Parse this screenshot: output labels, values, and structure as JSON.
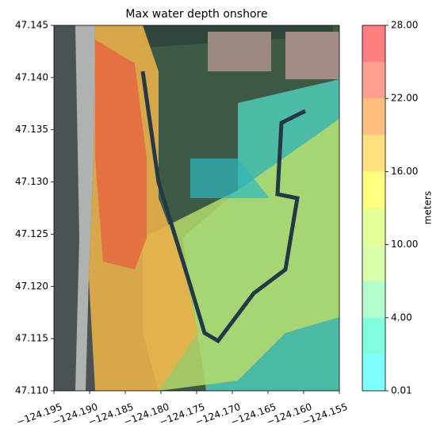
{
  "chart_data": {
    "type": "contour-map",
    "title": "Max water depth onshore",
    "xlim": [
      -124.195,
      -124.155
    ],
    "xticks": [
      {
        "value": -124.195,
        "label": "−124.195"
      },
      {
        "value": -124.19,
        "label": "−124.190"
      },
      {
        "value": -124.185,
        "label": "−124.185"
      },
      {
        "value": -124.18,
        "label": "−124.180"
      },
      {
        "value": -124.175,
        "label": "−124.175"
      },
      {
        "value": -124.17,
        "label": "−124.170"
      },
      {
        "value": -124.165,
        "label": "−124.165"
      },
      {
        "value": -124.16,
        "label": "−124.160"
      },
      {
        "value": -124.155,
        "label": "−124.155"
      }
    ],
    "ylim": [
      47.11,
      47.145
    ],
    "yticks": [
      {
        "value": 47.11,
        "label": "47.110"
      },
      {
        "value": 47.115,
        "label": "47.115"
      },
      {
        "value": 47.12,
        "label": "47.120"
      },
      {
        "value": 47.125,
        "label": "47.125"
      },
      {
        "value": 47.13,
        "label": "47.130"
      },
      {
        "value": 47.135,
        "label": "47.135"
      },
      {
        "value": 47.14,
        "label": "47.140"
      },
      {
        "value": 47.145,
        "label": "47.145"
      }
    ],
    "colorbar": {
      "label": "meters",
      "levels": [
        0.01,
        2,
        4,
        7,
        10,
        13,
        16,
        19,
        22,
        25,
        28
      ],
      "colors": [
        "#00ffff",
        "#00ffc0",
        "#66ff99",
        "#b3ff55",
        "#ccff33",
        "#ffff00",
        "#ffc000",
        "#ff8000",
        "#ff4020",
        "#ff0000"
      ],
      "ticks": [
        {
          "value": 0.01,
          "label": "0.01"
        },
        {
          "value": 4,
          "label": "4.00"
        },
        {
          "value": 10,
          "label": "10.00"
        },
        {
          "value": 16,
          "label": "16.00"
        },
        {
          "value": 22,
          "label": "22.00"
        },
        {
          "value": 28,
          "label": "28.00"
        }
      ]
    }
  }
}
